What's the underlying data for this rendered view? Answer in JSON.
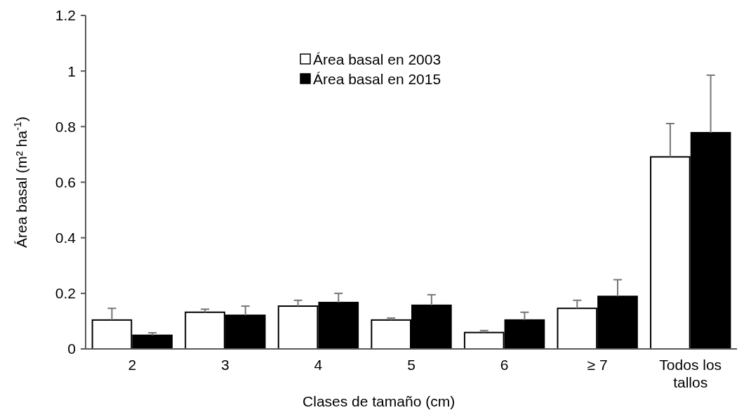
{
  "chart_data": {
    "type": "bar",
    "xlabel": "Clases de tamaño (cm)",
    "ylabel": "Área basal (m² ha$^{-1}$)",
    "categories": [
      "2",
      "3",
      "4",
      "5",
      "6",
      "≥ 7",
      "Todos los tallos"
    ],
    "series": [
      {
        "name": "Área basal en 2003",
        "color": "#ffffff",
        "values": [
          0.104,
          0.132,
          0.154,
          0.104,
          0.059,
          0.146,
          0.691
        ],
        "errors": [
          [
            0.104,
            0.146
          ],
          [
            0.132,
            0.143
          ],
          [
            0.154,
            0.175
          ],
          [
            0.104,
            0.111
          ],
          [
            0.059,
            0.066
          ],
          [
            0.146,
            0.175
          ],
          [
            0.691,
            0.811
          ]
        ]
      },
      {
        "name": "Área basal en 2015",
        "color": "#000000",
        "values": [
          0.049,
          0.121,
          0.167,
          0.157,
          0.104,
          0.189,
          0.778
        ],
        "errors": [
          [
            0.049,
            0.058
          ],
          [
            0.121,
            0.154
          ],
          [
            0.167,
            0.2
          ],
          [
            0.157,
            0.195
          ],
          [
            0.104,
            0.132
          ],
          [
            0.189,
            0.249
          ],
          [
            0.778,
            0.985
          ]
        ]
      }
    ],
    "ylim": [
      0,
      1.2
    ],
    "yticks": [
      0,
      0.2,
      0.4,
      0.6,
      0.8,
      1,
      1.2
    ],
    "legend": "top",
    "grid": false
  }
}
